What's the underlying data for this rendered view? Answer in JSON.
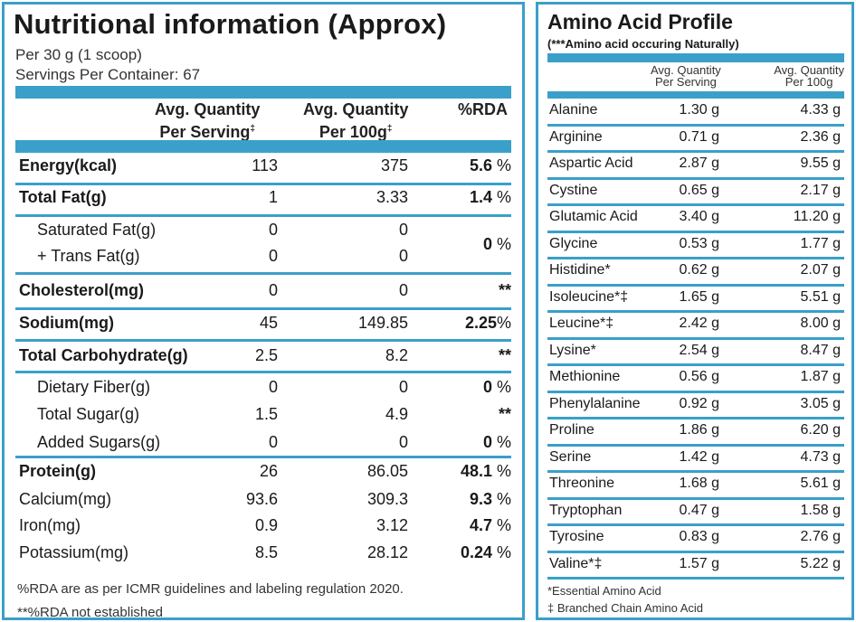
{
  "nutrition": {
    "title": "Nutritional information (Approx)",
    "serving_size": "Per 30 g (1 scoop)",
    "servings_per_container": "Servings Per Container: 67",
    "headers": {
      "col1_line1": "Avg. Quantity",
      "col1_line2": "Per Serving",
      "col2_line1": "Avg. Quantity",
      "col2_line2": "Per 100g",
      "col3": "%RDA",
      "dagger": "‡"
    },
    "rows": [
      {
        "name": "Energy(kcal)",
        "per_serving": "113",
        "per_100g": "375",
        "rda_value": "5.6",
        "rda_unit": " %"
      },
      {
        "name": "Total Fat(g)",
        "per_serving": "1",
        "per_100g": "3.33",
        "rda_value": "1.4",
        "rda_unit": " %"
      },
      {
        "name": "Saturated Fat(g)",
        "per_serving": "0",
        "per_100g": "0",
        "rda_value": "0",
        "rda_unit": " %"
      },
      {
        "name": "+ Trans Fat(g)",
        "per_serving": "0",
        "per_100g": "0"
      },
      {
        "name": "Cholesterol(mg)",
        "per_serving": "0",
        "per_100g": "0",
        "rda_value": "**",
        "rda_unit": ""
      },
      {
        "name": "Sodium(mg)",
        "per_serving": "45",
        "per_100g": "149.85",
        "rda_value": "2.25",
        "rda_unit": "%"
      },
      {
        "name": "Total Carbohydrate(g)",
        "per_serving": "2.5",
        "per_100g": "8.2",
        "rda_value": "**",
        "rda_unit": ""
      },
      {
        "name": "Dietary Fiber(g)",
        "per_serving": "0",
        "per_100g": "0",
        "rda_value": "0",
        "rda_unit": " %"
      },
      {
        "name": "Total Sugar(g)",
        "per_serving": "1.5",
        "per_100g": "4.9",
        "rda_value": "**",
        "rda_unit": ""
      },
      {
        "name": "Added Sugars(g)",
        "per_serving": "0",
        "per_100g": "0",
        "rda_value": "0",
        "rda_unit": " %"
      },
      {
        "name": "Protein(g)",
        "per_serving": "26",
        "per_100g": "86.05",
        "rda_value": "48.1",
        "rda_unit": " %"
      },
      {
        "name": "Calcium(mg)",
        "per_serving": "93.6",
        "per_100g": "309.3",
        "rda_value": "9.3",
        "rda_unit": " %"
      },
      {
        "name": "Iron(mg)",
        "per_serving": "0.9",
        "per_100g": "3.12",
        "rda_value": "4.7",
        "rda_unit": " %"
      },
      {
        "name": "Potassium(mg)",
        "per_serving": "8.5",
        "per_100g": "28.12",
        "rda_value": "0.24",
        "rda_unit": " %"
      }
    ],
    "footnote1": "%RDA are as per ICMR guidelines and labeling regulation 2020.",
    "footnote2": "**%RDA not established"
  },
  "amino": {
    "title": "Amino Acid Profile",
    "subtitle": "(***Amino acid occuring Naturally)",
    "headers": {
      "col1_line1": "Avg. Quantity",
      "col1_line2": "Per Serving",
      "col2_line1": "Avg. Quantity",
      "col2_line2": "Per 100g"
    },
    "rows": [
      {
        "name": "Alanine",
        "per_serving": "1.30 g",
        "per_100g": "4.33 g"
      },
      {
        "name": "Arginine",
        "per_serving": "0.71 g",
        "per_100g": "2.36 g"
      },
      {
        "name": "Aspartic Acid",
        "per_serving": "2.87 g",
        "per_100g": "9.55 g"
      },
      {
        "name": "Cystine",
        "per_serving": "0.65 g",
        "per_100g": "2.17 g"
      },
      {
        "name": "Glutamic Acid",
        "per_serving": "3.40 g",
        "per_100g": "11.20 g"
      },
      {
        "name": "Glycine",
        "per_serving": "0.53 g",
        "per_100g": "1.77 g"
      },
      {
        "name": "Histidine*",
        "per_serving": "0.62 g",
        "per_100g": "2.07 g"
      },
      {
        "name": "Isoleucine*‡",
        "per_serving": "1.65 g",
        "per_100g": "5.51 g"
      },
      {
        "name": "Leucine*‡",
        "per_serving": "2.42 g",
        "per_100g": "8.00 g"
      },
      {
        "name": "Lysine*",
        "per_serving": "2.54 g",
        "per_100g": "8.47 g"
      },
      {
        "name": "Methionine",
        "per_serving": "0.56 g",
        "per_100g": "1.87 g"
      },
      {
        "name": "Phenylalanine",
        "per_serving": "0.92 g",
        "per_100g": "3.05 g"
      },
      {
        "name": "Proline",
        "per_serving": "1.86 g",
        "per_100g": "6.20 g"
      },
      {
        "name": "Serine",
        "per_serving": "1.42 g",
        "per_100g": "4.73 g"
      },
      {
        "name": "Threonine",
        "per_serving": "1.68 g",
        "per_100g": "5.61 g"
      },
      {
        "name": "Tryptophan",
        "per_serving": "0.47 g",
        "per_100g": "1.58 g"
      },
      {
        "name": "Tyrosine",
        "per_serving": "0.83 g",
        "per_100g": "2.76 g"
      },
      {
        "name": "Valine*‡",
        "per_serving": "1.57 g",
        "per_100g": "5.22 g"
      }
    ],
    "footnote1": "*Essential Amino Acid",
    "footnote2": "‡ Branched Chain Amino Acid"
  },
  "colors": {
    "accent": "#3aa0c9"
  }
}
